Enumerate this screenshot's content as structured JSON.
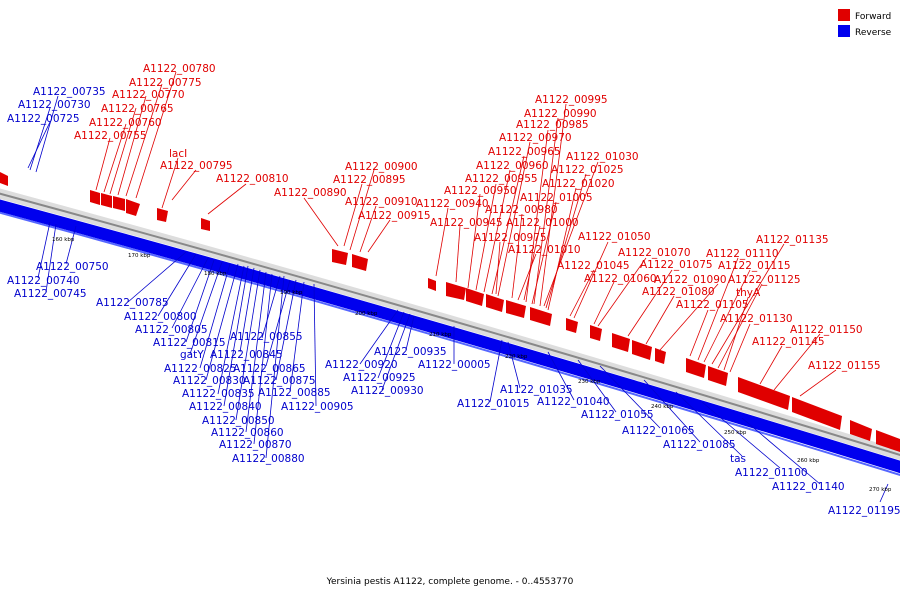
{
  "legend": [
    {
      "label": "Forward",
      "color": "#e00000"
    },
    {
      "label": "Reverse",
      "color": "#0000ee"
    }
  ],
  "caption": "Yersinia pestis A1122, complete genome. - 0..4553770",
  "colors": {
    "forward": "#e00000",
    "reverse": "#0000ee",
    "backbone": "#999999"
  },
  "ticks": [
    "160 kbp",
    "170 kbp",
    "180 kbp",
    "190 kbp",
    "200 kbp",
    "210 kbp",
    "220 kbp",
    "230 kbp",
    "240 kbp",
    "250 kbp",
    "260 kbp",
    "270 kbp"
  ],
  "forward_labels": [
    "A1122_00780",
    "A1122_00775",
    "A1122_00770",
    "A1122_00765",
    "A1122_00760",
    "A1122_00755",
    "lacI",
    "A1122_00795",
    "A1122_00810",
    "A1122_00890",
    "A1122_00900",
    "A1122_00895",
    "A1122_00910",
    "A1122_00915",
    "A1122_00995",
    "A1122_00990",
    "A1122_00985",
    "A1122_00970",
    "A1122_00965",
    "A1122_00960",
    "A1122_00955",
    "A1122_00950",
    "A1122_00940",
    "A1122_00945",
    "A1122_00980",
    "A1122_00975",
    "A1122_01000",
    "A1122_01005",
    "A1122_01010",
    "A1122_01030",
    "A1122_01025",
    "A1122_01020",
    "A1122_01050",
    "A1122_01045",
    "A1122_01070",
    "A1122_01060",
    "A1122_01075",
    "A1122_01080",
    "A1122_01090",
    "A1122_01105",
    "A1122_01135",
    "A1122_01110",
    "A1122_01115",
    "A1122_01125",
    "thyA",
    "A1122_01130",
    "A1122_01150",
    "A1122_01145",
    "A1122_01155"
  ],
  "reverse_labels": [
    "A1122_00735",
    "A1122_00730",
    "A1122_00725",
    "A1122_00750",
    "A1122_00740",
    "A1122_00745",
    "A1122_00785",
    "A1122_00800",
    "A1122_00805",
    "A1122_00815",
    "gatY",
    "A1122_00845",
    "A1122_00825",
    "A1122_00830",
    "A1122_00835",
    "A1122_00840",
    "A1122_00850",
    "A1122_00860",
    "A1122_00870",
    "A1122_00880",
    "A1122_00855",
    "A1122_00865",
    "A1122_00875",
    "A1122_00885",
    "A1122_00905",
    "A1122_00935",
    "A1122_00920",
    "A1122_00925",
    "A1122_00930",
    "A1122_00005",
    "A1122_01035",
    "A1122_01015",
    "A1122_01040",
    "A1122_01055",
    "A1122_01065",
    "A1122_01085",
    "tas",
    "A1122_01100",
    "A1122_01140",
    "A1122_01195"
  ]
}
